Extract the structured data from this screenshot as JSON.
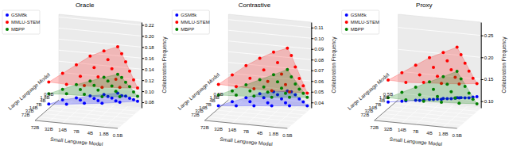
{
  "chart_data": [
    {
      "type": "scatter3d",
      "title": "Oracle",
      "x_label": "Small Language Model",
      "y_label": "Large Language Model",
      "z_label": "Collaboration Frequency",
      "x_categories": [
        "72B",
        "32B",
        "14B",
        "7B",
        "4B",
        "1.8B",
        "0.5B"
      ],
      "y_categories": [
        "72B",
        "32B",
        "14B",
        "7B",
        "4B",
        "1.8B",
        "0.5B"
      ],
      "x": [
        "32B",
        "14B",
        "7B",
        "4B",
        "1.8B",
        "0.5B",
        "14B",
        "7B",
        "4B",
        "1.8B",
        "0.5B",
        "7B",
        "4B",
        "1.8B",
        "0.5B",
        "4B",
        "1.8B",
        "0.5B",
        "1.8B",
        "0.5B",
        "0.5B"
      ],
      "y": [
        "72B",
        "72B",
        "72B",
        "72B",
        "72B",
        "72B",
        "32B",
        "32B",
        "32B",
        "32B",
        "32B",
        "14B",
        "14B",
        "14B",
        "14B",
        "7B",
        "7B",
        "7B",
        "4B",
        "4B",
        "1.8B"
      ],
      "zlim": [
        0.07,
        0.225
      ],
      "zticks": [
        0.08,
        {
          "value": 0.1,
          "label": "0.10"
        },
        0.12,
        0.14,
        0.16,
        0.18,
        {
          "value": 0.2,
          "label": "0.20"
        },
        0.22
      ],
      "legend": "upper left",
      "series": [
        {
          "name": "GSM8k",
          "color": "#0000ff",
          "values": [
            0.102,
            0.112,
            0.118,
            0.124,
            0.129,
            0.134,
            0.098,
            0.108,
            0.113,
            0.119,
            0.123,
            0.096,
            0.103,
            0.11,
            0.116,
            0.092,
            0.099,
            0.106,
            0.09,
            0.097,
            0.088
          ]
        },
        {
          "name": "MMLU-STEM",
          "color": "#ff0000",
          "values": [
            0.142,
            0.16,
            0.178,
            0.196,
            0.208,
            0.218,
            0.134,
            0.151,
            0.169,
            0.186,
            0.199,
            0.128,
            0.146,
            0.163,
            0.178,
            0.121,
            0.138,
            0.155,
            0.117,
            0.133,
            0.112
          ]
        },
        {
          "name": "MBPP",
          "color": "#008000",
          "values": [
            0.121,
            0.131,
            0.142,
            0.151,
            0.16,
            0.168,
            0.117,
            0.127,
            0.137,
            0.147,
            0.156,
            0.112,
            0.122,
            0.132,
            0.141,
            0.104,
            0.116,
            0.127,
            0.1,
            0.111,
            0.097
          ]
        }
      ]
    },
    {
      "type": "scatter3d",
      "title": "Contrastive",
      "x_label": "Small Language Model",
      "y_label": "Large Language Model",
      "z_label": "Collaboration Frequency",
      "x_categories": [
        "72B",
        "32B",
        "14B",
        "7B",
        "4B",
        "1.8B",
        "0.5B"
      ],
      "y_categories": [
        "72B",
        "32B",
        "14B",
        "7B",
        "4B",
        "1.8B",
        "0.5B"
      ],
      "x": [
        "32B",
        "14B",
        "7B",
        "4B",
        "1.8B",
        "0.5B",
        "14B",
        "7B",
        "4B",
        "1.8B",
        "0.5B",
        "7B",
        "4B",
        "1.8B",
        "0.5B",
        "4B",
        "1.8B",
        "0.5B",
        "1.8B",
        "0.5B",
        "0.5B"
      ],
      "y": [
        "72B",
        "72B",
        "72B",
        "72B",
        "72B",
        "72B",
        "32B",
        "32B",
        "32B",
        "32B",
        "32B",
        "14B",
        "14B",
        "14B",
        "14B",
        "7B",
        "7B",
        "7B",
        "4B",
        "4B",
        "1.8B"
      ],
      "zlim": [
        0.035,
        0.115
      ],
      "zticks": [
        0.04,
        0.05,
        0.06,
        0.07,
        0.08,
        0.09,
        {
          "value": 0.1,
          "label": "0.10"
        },
        0.11
      ],
      "legend": "upper left",
      "series": [
        {
          "name": "GSM8k",
          "color": "#0000ff",
          "values": [
            0.05,
            0.055,
            0.06,
            0.065,
            0.068,
            0.07,
            0.048,
            0.053,
            0.058,
            0.062,
            0.066,
            0.046,
            0.05,
            0.055,
            0.06,
            0.044,
            0.048,
            0.053,
            0.042,
            0.047,
            0.04
          ]
        },
        {
          "name": "MMLU-STEM",
          "color": "#ff0000",
          "values": [
            0.07,
            0.08,
            0.09,
            0.098,
            0.105,
            0.11,
            0.066,
            0.075,
            0.084,
            0.092,
            0.1,
            0.062,
            0.07,
            0.078,
            0.086,
            0.058,
            0.065,
            0.072,
            0.055,
            0.062,
            0.052
          ]
        },
        {
          "name": "MBPP",
          "color": "#008000",
          "values": [
            0.06,
            0.065,
            0.072,
            0.078,
            0.084,
            0.09,
            0.058,
            0.063,
            0.068,
            0.074,
            0.08,
            0.055,
            0.06,
            0.065,
            0.07,
            0.052,
            0.057,
            0.062,
            0.05,
            0.055,
            0.048
          ]
        }
      ]
    },
    {
      "type": "scatter3d",
      "title": "Proxy",
      "x_label": "Small Language Model",
      "y_label": "Large Language Model",
      "z_label": "Collaboration Frequency",
      "x_categories": [
        "72B",
        "32B",
        "14B",
        "7B",
        "4B",
        "1.8B",
        "0.5B"
      ],
      "y_categories": [
        "72B",
        "32B",
        "14B",
        "7B",
        "4B",
        "1.8B",
        "0.5B"
      ],
      "x": [
        "32B",
        "14B",
        "7B",
        "4B",
        "1.8B",
        "0.5B",
        "14B",
        "7B",
        "4B",
        "1.8B",
        "0.5B",
        "7B",
        "4B",
        "1.8B",
        "0.5B",
        "4B",
        "1.8B",
        "0.5B",
        "1.8B",
        "0.5B",
        "0.5B"
      ],
      "y": [
        "72B",
        "72B",
        "72B",
        "72B",
        "72B",
        "72B",
        "32B",
        "32B",
        "32B",
        "32B",
        "32B",
        "14B",
        "14B",
        "14B",
        "14B",
        "7B",
        "7B",
        "7B",
        "4B",
        "4B",
        "1.8B"
      ],
      "zlim": [
        0.085,
        0.28
      ],
      "zticks": [
        {
          "value": 0.1,
          "label": "0.10"
        },
        0.15,
        {
          "value": 0.2,
          "label": "0.20"
        },
        0.25
      ],
      "legend": "upper left",
      "series": [
        {
          "name": "GSM8k",
          "color": "#0000ff",
          "values": [
            0.13,
            0.135,
            0.14,
            0.145,
            0.15,
            0.155,
            0.128,
            0.132,
            0.137,
            0.142,
            0.147,
            0.125,
            0.13,
            0.134,
            0.139,
            0.122,
            0.127,
            0.131,
            0.12,
            0.125,
            0.118
          ]
        },
        {
          "name": "MMLU-STEM",
          "color": "#ff0000",
          "values": [
            0.18,
            0.2,
            0.22,
            0.24,
            0.255,
            0.27,
            0.17,
            0.19,
            0.21,
            0.228,
            0.245,
            0.165,
            0.182,
            0.2,
            0.218,
            0.158,
            0.175,
            0.192,
            0.152,
            0.168,
            0.148
          ]
        },
        {
          "name": "MBPP",
          "color": "#008000",
          "values": [
            0.14,
            0.155,
            0.17,
            0.185,
            0.2,
            0.215,
            0.13,
            0.145,
            0.16,
            0.175,
            0.19,
            0.122,
            0.136,
            0.15,
            0.165,
            0.115,
            0.128,
            0.142,
            0.108,
            0.12,
            0.102
          ]
        }
      ]
    }
  ]
}
